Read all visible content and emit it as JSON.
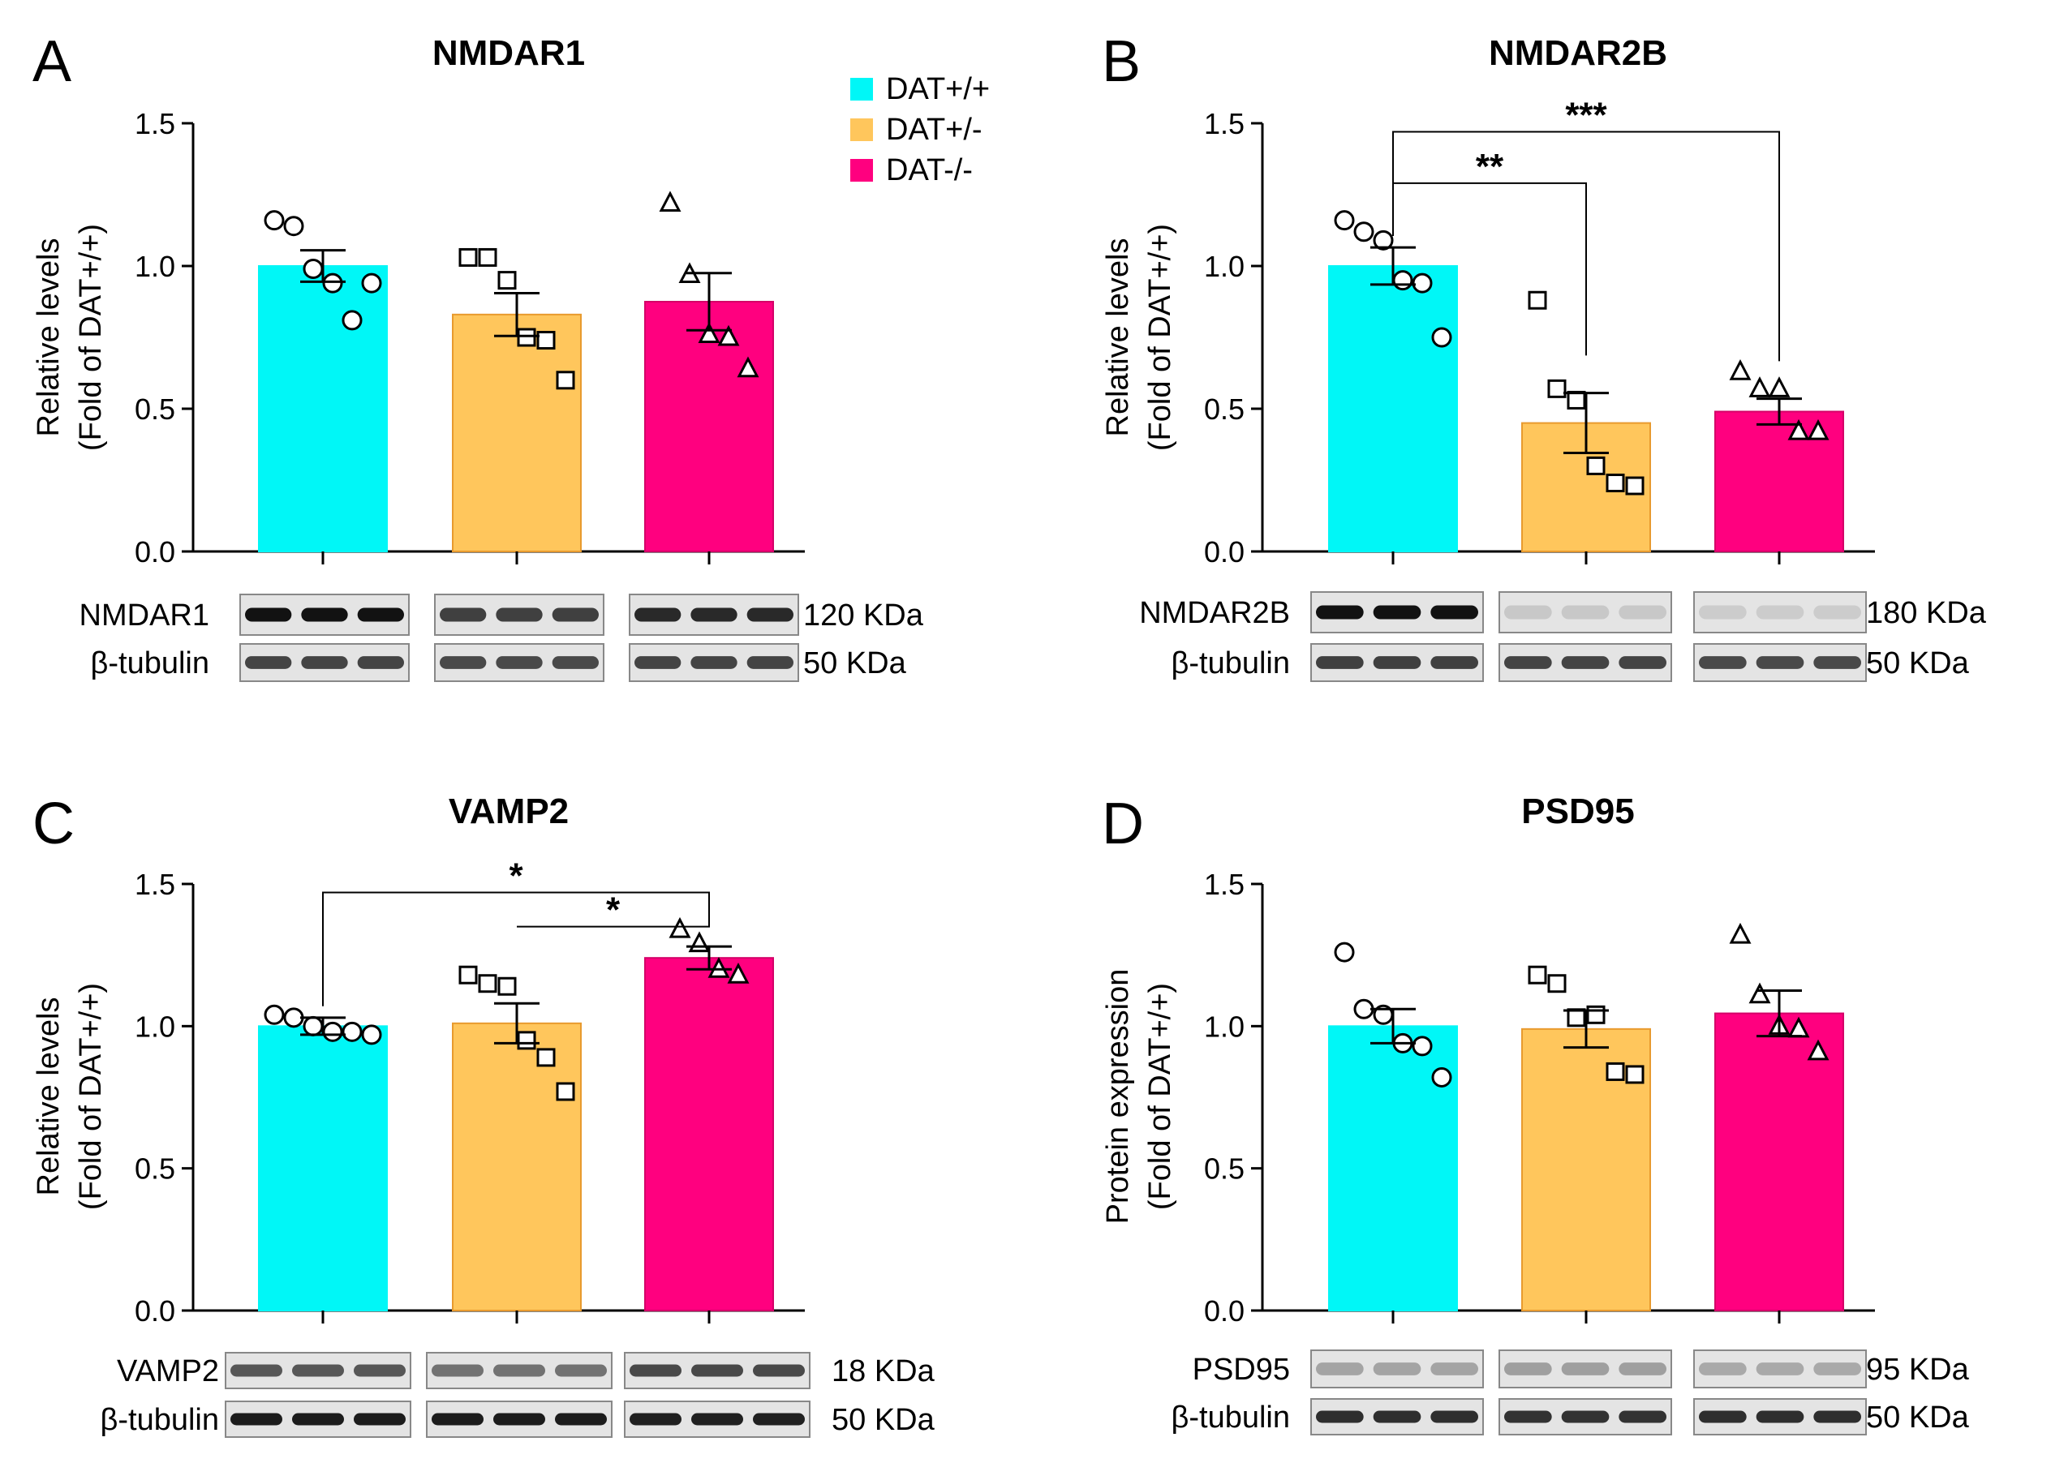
{
  "colors": {
    "wt": "#00f7f7",
    "het": "#ffc65c",
    "het_edge": "#e89a2e",
    "ko": "#ff007f",
    "ko_edge": "#d40068",
    "ink": "#000000",
    "blot_bg": "#e4e4e4"
  },
  "legend": {
    "items": [
      {
        "label": "DAT+/+",
        "color": "#00f7f7"
      },
      {
        "label": "DAT+/-",
        "color": "#ffc65c"
      },
      {
        "label": "DAT-/-",
        "color": "#ff007f"
      }
    ]
  },
  "markers": [
    "circle-marker",
    "square-marker",
    "triangle-marker"
  ],
  "chart_data": [
    {
      "panel": "A",
      "type": "bar",
      "title": "NMDAR1",
      "ylabel": [
        "Relative levels",
        "(Fold of DAT+/+)"
      ],
      "ylim": [
        0,
        1.5
      ],
      "yticks": [
        "0.0",
        "0.5",
        "1.0",
        "1.5"
      ],
      "categories": [
        "DAT+/+",
        "DAT+/-",
        "DAT-/-"
      ],
      "values": [
        1.0,
        0.83,
        0.875
      ],
      "sem": [
        0.055,
        0.075,
        0.1
      ],
      "points": [
        [
          1.16,
          1.14,
          0.99,
          0.94,
          0.81,
          0.94
        ],
        [
          1.03,
          1.03,
          0.95,
          0.75,
          0.74,
          0.6
        ],
        [
          1.22,
          0.97,
          0.76,
          0.75,
          0.64
        ]
      ],
      "comparisons": [],
      "blots": [
        {
          "label": "NMDAR1",
          "kda": "120 KDa",
          "intensity": [
            0.92,
            0.72,
            0.82
          ]
        },
        {
          "label": "β-tubulin",
          "kda": "50 KDa",
          "intensity": [
            0.7,
            0.68,
            0.7
          ]
        }
      ]
    },
    {
      "panel": "B",
      "type": "bar",
      "title": "NMDAR2B",
      "ylabel": [
        "Relative levels",
        "(Fold of DAT+/+)"
      ],
      "ylim": [
        0,
        1.5
      ],
      "yticks": [
        "0.0",
        "0.5",
        "1.0",
        "1.5"
      ],
      "categories": [
        "DAT+/+",
        "DAT+/-",
        "DAT-/-"
      ],
      "values": [
        1.0,
        0.45,
        0.49
      ],
      "sem": [
        0.065,
        0.105,
        0.045
      ],
      "points": [
        [
          1.16,
          1.12,
          1.09,
          0.95,
          0.94,
          0.75
        ],
        [
          0.88,
          0.57,
          0.53,
          0.3,
          0.24,
          0.23
        ],
        [
          0.63,
          0.57,
          0.57,
          0.42,
          0.42
        ]
      ],
      "comparisons": [
        {
          "from": 0,
          "to": 1,
          "label": "**",
          "y": 1.29
        },
        {
          "from": 0,
          "to": 2,
          "label": "***",
          "y": 1.47
        }
      ],
      "blots": [
        {
          "label": "NMDAR2B",
          "kda": "180 KDa",
          "intensity": [
            0.92,
            0.12,
            0.1
          ]
        },
        {
          "label": "β-tubulin",
          "kda": "50 KDa",
          "intensity": [
            0.72,
            0.7,
            0.68
          ]
        }
      ]
    },
    {
      "panel": "C",
      "type": "bar",
      "title": "VAMP2",
      "ylabel": [
        "Relative levels",
        "(Fold of DAT+/+)"
      ],
      "ylim": [
        0,
        1.5
      ],
      "yticks": [
        "0.0",
        "0.5",
        "1.0",
        "1.5"
      ],
      "categories": [
        "DAT+/+",
        "DAT+/-",
        "DAT-/-"
      ],
      "values": [
        1.0,
        1.01,
        1.24
      ],
      "sem": [
        0.03,
        0.07,
        0.04
      ],
      "points": [
        [
          1.04,
          1.03,
          1.0,
          0.98,
          0.98,
          0.97
        ],
        [
          1.18,
          1.15,
          1.14,
          0.95,
          0.89,
          0.77
        ],
        [
          1.34,
          1.29,
          1.2,
          1.18
        ]
      ],
      "comparisons": [
        {
          "from": 0,
          "to": 2,
          "label": "*",
          "y": 1.47
        },
        {
          "from": 1,
          "to": 2,
          "label": "*",
          "y": 1.35
        }
      ],
      "blots": [
        {
          "label": "VAMP2",
          "kda": "18 KDa",
          "intensity": [
            0.62,
            0.5,
            0.68
          ]
        },
        {
          "label": "β-tubulin",
          "kda": "50 KDa",
          "intensity": [
            0.88,
            0.88,
            0.86
          ]
        }
      ]
    },
    {
      "panel": "D",
      "type": "bar",
      "title": "PSD95",
      "ylabel": [
        "Protein expression",
        "(Fold of DAT+/+)"
      ],
      "ylim": [
        0,
        1.5
      ],
      "yticks": [
        "0.0",
        "0.5",
        "1.0",
        "1.5"
      ],
      "categories": [
        "DAT+/+",
        "DAT+/-",
        "DAT-/-"
      ],
      "values": [
        1.0,
        0.99,
        1.045
      ],
      "sem": [
        0.06,
        0.065,
        0.08
      ],
      "points": [
        [
          1.26,
          1.06,
          1.04,
          0.94,
          0.93,
          0.82
        ],
        [
          1.18,
          1.15,
          1.03,
          1.04,
          0.84,
          0.83
        ],
        [
          1.32,
          1.11,
          1.0,
          0.99,
          0.91
        ]
      ],
      "comparisons": [],
      "blots": [
        {
          "label": "PSD95",
          "kda": "95 KDa",
          "intensity": [
            0.28,
            0.3,
            0.26
          ]
        },
        {
          "label": "β-tubulin",
          "kda": "50 KDa",
          "intensity": [
            0.8,
            0.78,
            0.8
          ]
        }
      ]
    }
  ]
}
